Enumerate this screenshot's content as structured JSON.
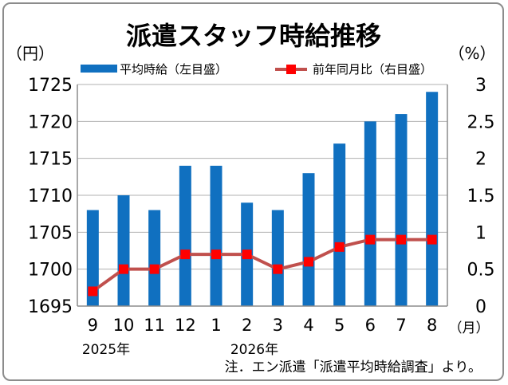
{
  "chart_data": {
    "type": "bar+line",
    "title": "派遣スタッフ時給推移",
    "left_unit": "（円）",
    "right_unit": "（%）",
    "x_unit": "（月）",
    "categories": [
      "9",
      "10",
      "11",
      "12",
      "1",
      "2",
      "3",
      "4",
      "5",
      "6",
      "7",
      "8"
    ],
    "year_labels": [
      "2025年",
      "2026年"
    ],
    "ylim_left": [
      1695,
      1725
    ],
    "yticks_left": [
      "1695",
      "1700",
      "1705",
      "1710",
      "1715",
      "1720",
      "1725"
    ],
    "ylim_right": [
      0,
      3
    ],
    "yticks_right": [
      "0",
      "0.5",
      "1",
      "1.5",
      "2",
      "2.5",
      "3"
    ],
    "grid": true,
    "legend_position": "top",
    "series": [
      {
        "name": "平均時給（左目盛）",
        "type": "bar",
        "axis": "left",
        "color": "#1070c0",
        "values": [
          1708,
          1710,
          1708,
          1714,
          1714,
          1709,
          1708,
          1713,
          1717,
          1720,
          1721,
          1724
        ]
      },
      {
        "name": "前年同月比（右目盛）",
        "type": "line",
        "axis": "right",
        "color": "#c0504d",
        "marker_color": "#ff0000",
        "values": [
          0.2,
          0.5,
          0.5,
          0.7,
          0.7,
          0.7,
          0.5,
          0.6,
          0.8,
          0.9,
          0.9,
          0.9
        ]
      }
    ],
    "note": "注．エン派遣「派遣平均時給調査」より。"
  }
}
